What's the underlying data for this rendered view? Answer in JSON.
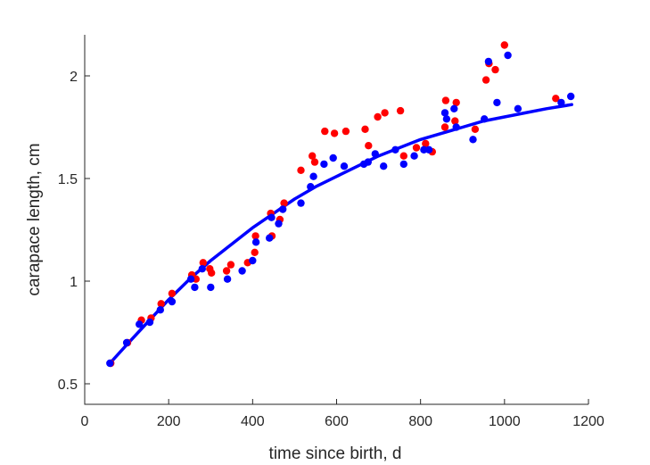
{
  "chart_data": {
    "type": "scatter",
    "title": "",
    "xlabel": "time since birth, d",
    "ylabel": "carapace length, cm",
    "xlim": [
      0,
      1200
    ],
    "ylim": [
      0.4,
      2.2
    ],
    "xticks": [
      0,
      200,
      400,
      600,
      800,
      1000,
      1200
    ],
    "xtick_labels": [
      "0",
      "200",
      "400",
      "600",
      "800",
      "1000",
      "1200"
    ],
    "yticks": [
      0.5,
      1,
      1.5,
      2
    ],
    "ytick_labels": [
      "0.5",
      "1",
      "1.5",
      "2"
    ],
    "grid": false,
    "legend": "none",
    "series": [
      {
        "color": "#ff0000",
        "x": [
          62,
          102,
          135,
          158,
          182,
          208,
          255,
          265,
          282,
          298,
          302,
          338,
          348,
          388,
          405,
          407,
          443,
          446,
          465,
          475,
          515,
          542,
          548,
          572,
          595,
          622,
          668,
          676,
          698,
          715,
          752,
          760,
          790,
          812,
          828,
          858,
          860,
          882,
          885,
          930,
          956,
          963,
          978,
          1000,
          1122
        ],
        "y": [
          0.6,
          0.7,
          0.81,
          0.82,
          0.89,
          0.94,
          1.03,
          1.01,
          1.09,
          1.06,
          1.04,
          1.05,
          1.08,
          1.09,
          1.14,
          1.22,
          1.33,
          1.22,
          1.3,
          1.38,
          1.54,
          1.61,
          1.58,
          1.73,
          1.72,
          1.73,
          1.74,
          1.66,
          1.8,
          1.82,
          1.83,
          1.61,
          1.65,
          1.67,
          1.63,
          1.75,
          1.88,
          1.78,
          1.87,
          1.74,
          1.98,
          2.06,
          2.03,
          2.15,
          1.89
        ]
      },
      {
        "color": "#0000ff",
        "x": [
          60,
          100,
          130,
          155,
          180,
          208,
          253,
          262,
          280,
          300,
          340,
          375,
          400,
          408,
          440,
          445,
          462,
          472,
          515,
          538,
          545,
          570,
          592,
          618,
          665,
          675,
          692,
          712,
          740,
          760,
          785,
          808,
          820,
          858,
          862,
          880,
          885,
          925,
          952,
          962,
          982,
          1008,
          1032,
          1135,
          1158
        ],
        "y": [
          0.6,
          0.7,
          0.79,
          0.8,
          0.86,
          0.9,
          1.01,
          0.97,
          1.06,
          0.97,
          1.01,
          1.05,
          1.1,
          1.19,
          1.21,
          1.31,
          1.28,
          1.35,
          1.38,
          1.46,
          1.51,
          1.57,
          1.6,
          1.56,
          1.57,
          1.58,
          1.62,
          1.56,
          1.64,
          1.57,
          1.61,
          1.64,
          1.64,
          1.82,
          1.79,
          1.84,
          1.75,
          1.69,
          1.79,
          2.07,
          1.87,
          2.1,
          1.84,
          1.87,
          1.9
        ]
      }
    ],
    "fit_curve": {
      "color": "#0000ff",
      "x": [
        60,
        100,
        150,
        200,
        250,
        300,
        350,
        400,
        450,
        500,
        550,
        600,
        650,
        700,
        750,
        800,
        850,
        900,
        950,
        1000,
        1050,
        1100,
        1160
      ],
      "y": [
        0.6,
        0.69,
        0.8,
        0.91,
        1.01,
        1.1,
        1.18,
        1.26,
        1.33,
        1.4,
        1.46,
        1.51,
        1.56,
        1.61,
        1.65,
        1.69,
        1.72,
        1.75,
        1.78,
        1.8,
        1.82,
        1.84,
        1.86
      ]
    }
  }
}
